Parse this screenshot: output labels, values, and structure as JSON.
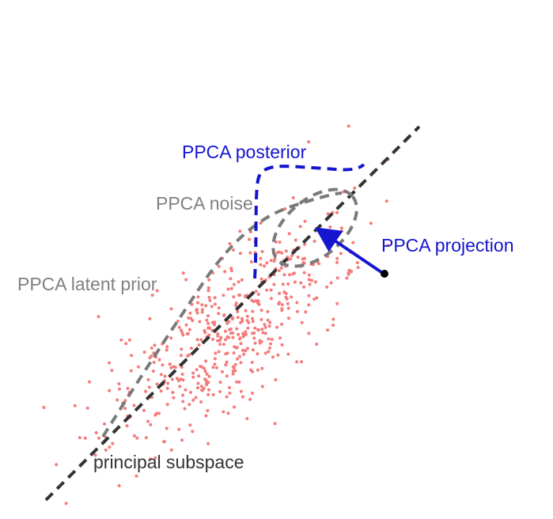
{
  "labels": {
    "posterior": "PPCA posterior",
    "noise": "PPCA noise",
    "projection": "PPCA projection",
    "prior": "PPCA latent prior",
    "subspace": "principal subspace"
  }
}
